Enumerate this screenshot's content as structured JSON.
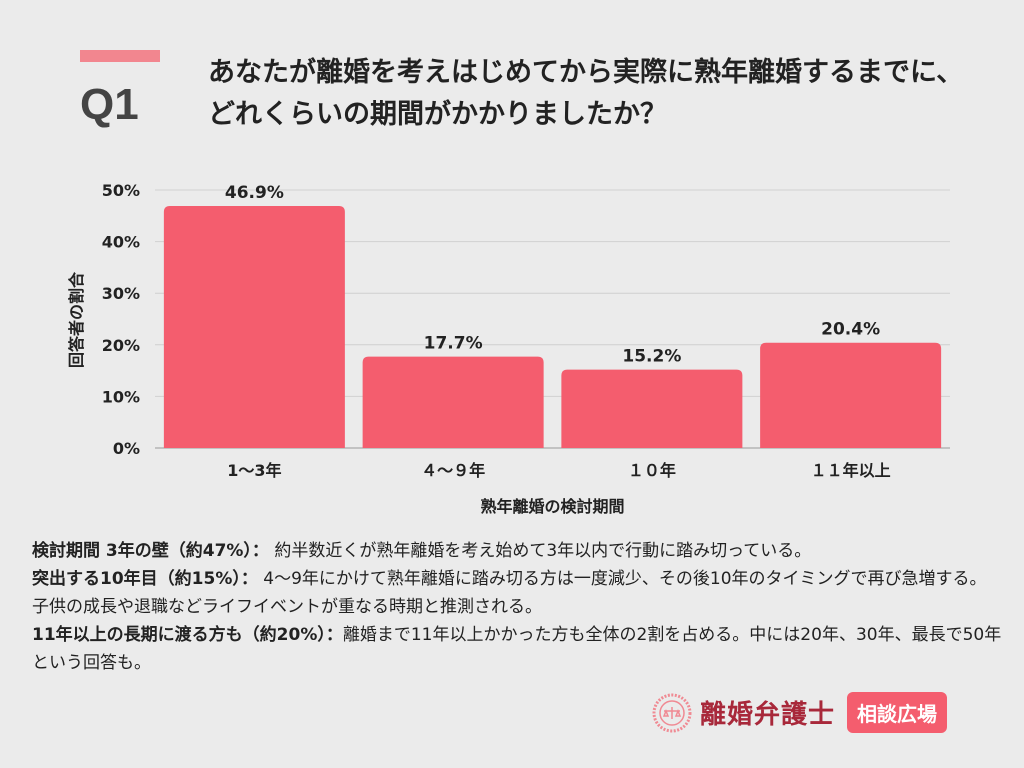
{
  "header": {
    "q_label": "Q1",
    "title": "あなたが離婚を考えはじめてから実際に熟年離婚するまでに、どれくらいの期間がかかりましたか？"
  },
  "chart_data": {
    "type": "bar",
    "categories": [
      "1〜3年",
      "４〜９年",
      "１０年",
      "１１年以上"
    ],
    "values": [
      46.9,
      17.7,
      15.2,
      20.4
    ],
    "data_labels": [
      "46.9%",
      "17.7%",
      "15.2%",
      "20.4%"
    ],
    "xlabel": "熟年離婚の検討期間",
    "ylabel": "回答者の割合",
    "ylim": [
      0,
      50
    ],
    "yticks": [
      "0%",
      "10%",
      "20%",
      "30%",
      "40%",
      "50%"
    ],
    "grid": true,
    "bar_color": "#f45d6e"
  },
  "notes": [
    {
      "head": "検討期間 3年の壁（約47%）：",
      "body": " 約半数近くが熟年離婚を考え始めて3年以内で行動に踏み切っている。"
    },
    {
      "head": "突出する10年目（約15%）：",
      "body": " 4〜9年にかけて熟年離婚に踏み切る方は一度減少、その後10年のタイミングで再び急増する。子供の成長や退職などライフイベントが重なる時期と推測される。"
    },
    {
      "head": "11年以上の長期に渡る方も（約20%）：",
      "body": "離婚まで11年以上かかった方も全体の2割を占める。中には20年、30年、最長で50年という回答も。"
    }
  ],
  "logo": {
    "brand": "離婚弁護士",
    "badge": "相談広場"
  }
}
